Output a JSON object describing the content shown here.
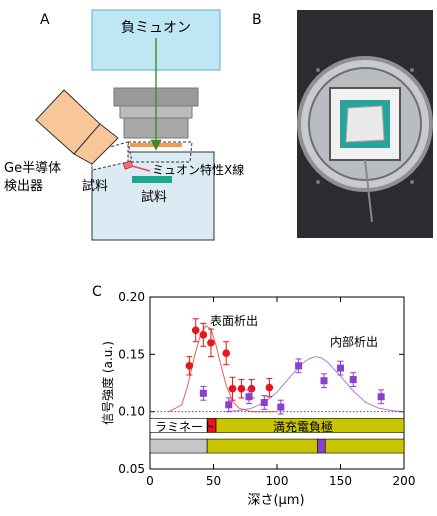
{
  "panels": {
    "a": {
      "letter": "A",
      "muon_beam_label": "負ミュオン",
      "detector_label_line1": "Ge半導体",
      "detector_label_line2": "検出器",
      "xray_label": "ミュオン特性X線",
      "sample_label_small": "試料",
      "sample_label_main": "試料"
    },
    "b": {
      "letter": "B"
    },
    "c": {
      "letter": "C",
      "surface_label": "表面析出",
      "interior_label": "内部析出",
      "laminate_label": "ラミネート",
      "electrode_label": "満充電負極"
    }
  },
  "colors": {
    "beam_fill": "#bfe6f3",
    "beam_stroke": "#5aa9c8",
    "chamber_fill": "#dbeaf3",
    "detector_fill": "#f7c79a",
    "sample_green": "#1aa88e",
    "surface_series": "#e8151b",
    "interior_series": "#8a3fcf",
    "laminate_gray": "#c6c6c6",
    "electrode_yellow": "#c7c400"
  },
  "chart_data": {
    "type": "scatter",
    "xlabel": "深さ(μm)",
    "ylabel": "信号強度 (a.u.)",
    "xlim": [
      0,
      200
    ],
    "ylim": [
      0.05,
      0.2
    ],
    "x_ticks": [
      "0",
      "50",
      "100",
      "150",
      "200"
    ],
    "y_ticks": [
      "0.05",
      "0.10",
      "0.15",
      "0.20"
    ],
    "baseline": 0.1,
    "series": [
      {
        "name": "表面析出",
        "marker": "circle",
        "x": [
          31,
          36,
          42,
          48,
          60,
          65,
          72,
          80,
          94
        ],
        "y": [
          0.14,
          0.171,
          0.167,
          0.16,
          0.151,
          0.12,
          0.12,
          0.12,
          0.121
        ],
        "err": [
          0.008,
          0.01,
          0.01,
          0.012,
          0.01,
          0.01,
          0.008,
          0.008,
          0.008
        ],
        "fit_x": [
          15,
          25,
          30,
          35,
          40,
          44,
          48,
          52,
          56,
          60,
          65,
          70,
          80,
          90,
          100
        ],
        "fit_y": [
          0.1,
          0.106,
          0.124,
          0.148,
          0.168,
          0.175,
          0.172,
          0.158,
          0.14,
          0.123,
          0.109,
          0.103,
          0.1,
          0.1,
          0.1
        ]
      },
      {
        "name": "内部析出",
        "marker": "square",
        "x": [
          42,
          62,
          78,
          90,
          103,
          117,
          137,
          150,
          160,
          182
        ],
        "y": [
          0.116,
          0.106,
          0.113,
          0.108,
          0.104,
          0.14,
          0.127,
          0.138,
          0.128,
          0.113
        ],
        "err": [
          0.006,
          0.006,
          0.006,
          0.006,
          0.006,
          0.006,
          0.006,
          0.006,
          0.006,
          0.006
        ],
        "fit_x": [
          60,
          70,
          80,
          90,
          100,
          110,
          120,
          125,
          130,
          135,
          140,
          150,
          160,
          170,
          180,
          190,
          200
        ],
        "fit_y": [
          0.1,
          0.101,
          0.103,
          0.108,
          0.117,
          0.13,
          0.142,
          0.146,
          0.148,
          0.147,
          0.143,
          0.131,
          0.118,
          0.108,
          0.103,
          0.101,
          0.1
        ]
      }
    ],
    "bars": [
      {
        "segments": [
          {
            "from": 0,
            "to": 45,
            "color": "#ffffff",
            "label": "ラミネート"
          },
          {
            "from": 45,
            "to": 52,
            "color": "#e8151b"
          },
          {
            "from": 52,
            "to": 200,
            "color": "#c7c400",
            "label": "満充電負極"
          }
        ]
      },
      {
        "segments": [
          {
            "from": 0,
            "to": 45,
            "color": "#c6c6c6"
          },
          {
            "from": 45,
            "to": 132,
            "color": "#c7c400"
          },
          {
            "from": 132,
            "to": 138,
            "color": "#8a3fcf"
          },
          {
            "from": 138,
            "to": 200,
            "color": "#c7c400"
          }
        ]
      }
    ],
    "grid": false,
    "legend": "none"
  }
}
